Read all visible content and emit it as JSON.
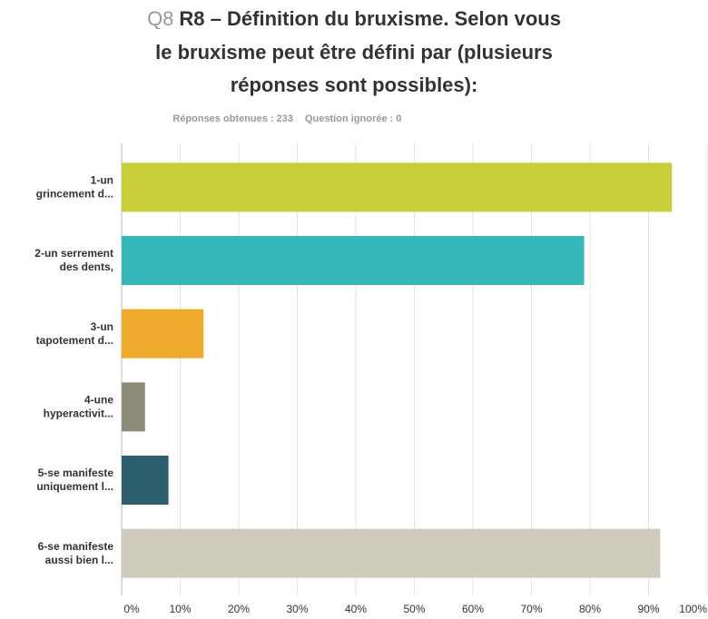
{
  "chart_data": {
    "type": "hbar",
    "title_prefix": "Q8",
    "title_lines": [
      "R8 – Définition du bruxisme. Selon vous",
      "le bruxisme peut être défini par (plusieurs",
      "réponses sont possibles):"
    ],
    "subtitle": [
      "Réponses obtenues : 233",
      "Question ignorée : 0"
    ],
    "categories": [
      [
        "1-un",
        "grincement d..."
      ],
      [
        "2-un serrement",
        "des dents,"
      ],
      [
        "3-un",
        "tapotement d..."
      ],
      [
        "4-une",
        "hyperactivit..."
      ],
      [
        "5-se manifeste",
        "uniquement l..."
      ],
      [
        "6-se manifeste",
        "aussi bien l..."
      ]
    ],
    "values": [
      94,
      79,
      14,
      4,
      8,
      92
    ],
    "colors": [
      "#c7ce37",
      "#35b6b9",
      "#efab2c",
      "#8b8b78",
      "#2d5f6e",
      "#cfccbd"
    ],
    "xlim": [
      0,
      100
    ],
    "xticks": [
      {
        "value": 0,
        "label": "0%"
      },
      {
        "value": 10,
        "label": "10%"
      },
      {
        "value": 20,
        "label": "20%"
      },
      {
        "value": 30,
        "label": "30%"
      },
      {
        "value": 40,
        "label": "40%"
      },
      {
        "value": 50,
        "label": "50%"
      },
      {
        "value": 60,
        "label": "60%"
      },
      {
        "value": 70,
        "label": "70%"
      },
      {
        "value": 80,
        "label": "80%"
      },
      {
        "value": 90,
        "label": "90%"
      },
      {
        "value": 100,
        "label": "100%"
      }
    ],
    "grid": true
  }
}
